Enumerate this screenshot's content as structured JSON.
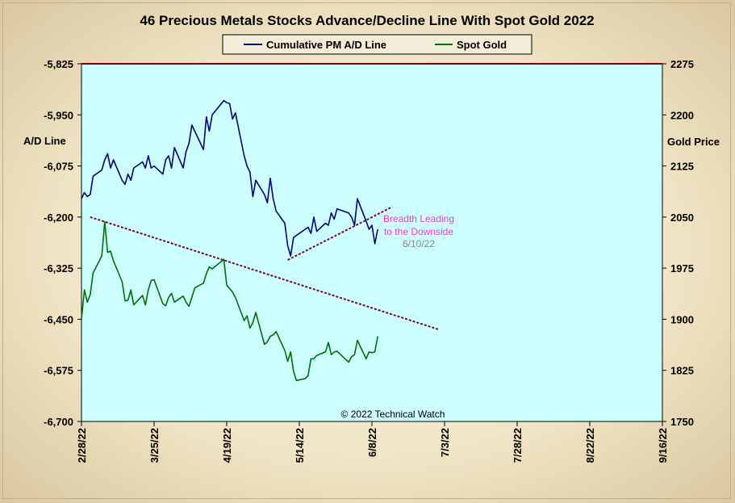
{
  "chart_data": {
    "type": "line",
    "title": "46 Precious Metals Stocks Advance/Decline Line With Spot Gold 2022",
    "legend": {
      "placement": "top-center",
      "entries": [
        {
          "label": "Cumulative PM A/D Line",
          "color": "#000080"
        },
        {
          "label": "Spot Gold",
          "color": "#007000"
        }
      ]
    },
    "y_left": {
      "title": "A/D Line",
      "range": [
        -6700,
        -5825
      ],
      "ticks": [
        -5825,
        -5950,
        -6075,
        -6200,
        -6325,
        -6450,
        -6575,
        -6700
      ],
      "tick_labels": [
        "-5,825",
        "-5,950",
        "-6,075",
        "-6,200",
        "-6,325",
        "-6,450",
        "-6,575",
        "-6,700"
      ]
    },
    "y_right": {
      "title": "Gold Price",
      "range": [
        1750,
        2275
      ],
      "ticks": [
        2275,
        2200,
        2125,
        2050,
        1975,
        1900,
        1825,
        1750
      ],
      "tick_labels": [
        "2275",
        "2200",
        "2125",
        "2050",
        "1975",
        "1900",
        "1825",
        "1750"
      ]
    },
    "x_axis": {
      "type": "date",
      "range": [
        "2022-02-28",
        "2022-09-16"
      ],
      "ticks": [
        "2022-02-28",
        "2022-03-25",
        "2022-04-19",
        "2022-05-14",
        "2022-06-08",
        "2022-07-03",
        "2022-07-28",
        "2022-08-22",
        "2022-09-16"
      ],
      "tick_labels": [
        "2/28/22",
        "3/25/22",
        "4/19/22",
        "5/14/22",
        "6/8/22",
        "7/3/22",
        "7/28/22",
        "8/22/22",
        "9/16/22"
      ]
    },
    "grid": false,
    "background": "#ccffff",
    "series": [
      {
        "name": "Cumulative PM A/D Line",
        "axis": "left",
        "color": "#000080",
        "x": [
          "2022-02-28",
          "2022-03-01",
          "2022-03-02",
          "2022-03-03",
          "2022-03-04",
          "2022-03-07",
          "2022-03-08",
          "2022-03-09",
          "2022-03-10",
          "2022-03-11",
          "2022-03-14",
          "2022-03-15",
          "2022-03-16",
          "2022-03-17",
          "2022-03-18",
          "2022-03-21",
          "2022-03-22",
          "2022-03-23",
          "2022-03-24",
          "2022-03-25",
          "2022-03-28",
          "2022-03-29",
          "2022-03-30",
          "2022-03-31",
          "2022-04-01",
          "2022-04-04",
          "2022-04-05",
          "2022-04-06",
          "2022-04-07",
          "2022-04-08",
          "2022-04-11",
          "2022-04-12",
          "2022-04-13",
          "2022-04-14",
          "2022-04-18",
          "2022-04-19",
          "2022-04-20",
          "2022-04-21",
          "2022-04-22",
          "2022-04-25",
          "2022-04-26",
          "2022-04-27",
          "2022-04-28",
          "2022-04-29",
          "2022-05-02",
          "2022-05-03",
          "2022-05-04",
          "2022-05-05",
          "2022-05-06",
          "2022-05-09",
          "2022-05-10",
          "2022-05-11",
          "2022-05-12",
          "2022-05-13",
          "2022-05-16",
          "2022-05-17",
          "2022-05-18",
          "2022-05-19",
          "2022-05-20",
          "2022-05-23",
          "2022-05-24",
          "2022-05-25",
          "2022-05-26",
          "2022-05-27",
          "2022-05-31",
          "2022-06-01",
          "2022-06-02",
          "2022-06-03",
          "2022-06-06",
          "2022-06-07",
          "2022-06-08",
          "2022-06-09",
          "2022-06-10"
        ],
        "values": [
          -6155,
          -6140,
          -6150,
          -6145,
          -6100,
          -6085,
          -6060,
          -6045,
          -6080,
          -6060,
          -6110,
          -6120,
          -6095,
          -6110,
          -6080,
          -6065,
          -6080,
          -6050,
          -6080,
          -6075,
          -6095,
          -6060,
          -6050,
          -6080,
          -6030,
          -6080,
          -6040,
          -6020,
          -5975,
          -5990,
          -6035,
          -5955,
          -5990,
          -5950,
          -5915,
          -5920,
          -5922,
          -5960,
          -5945,
          -6050,
          -6075,
          -6090,
          -6150,
          -6110,
          -6145,
          -6165,
          -6105,
          -6155,
          -6185,
          -6215,
          -6270,
          -6295,
          -6250,
          -6245,
          -6230,
          -6225,
          -6240,
          -6200,
          -6235,
          -6215,
          -6220,
          -6190,
          -6205,
          -6180,
          -6190,
          -6200,
          -6220,
          -6155,
          -6210,
          -6230,
          -6220,
          -6265,
          -6230
        ]
      },
      {
        "name": "Spot Gold",
        "axis": "right",
        "color": "#007000",
        "x": [
          "2022-02-28",
          "2022-03-01",
          "2022-03-02",
          "2022-03-03",
          "2022-03-04",
          "2022-03-07",
          "2022-03-08",
          "2022-03-09",
          "2022-03-10",
          "2022-03-11",
          "2022-03-14",
          "2022-03-15",
          "2022-03-16",
          "2022-03-17",
          "2022-03-18",
          "2022-03-21",
          "2022-03-22",
          "2022-03-23",
          "2022-03-24",
          "2022-03-25",
          "2022-03-28",
          "2022-03-29",
          "2022-03-30",
          "2022-03-31",
          "2022-04-01",
          "2022-04-04",
          "2022-04-05",
          "2022-04-06",
          "2022-04-07",
          "2022-04-08",
          "2022-04-11",
          "2022-04-12",
          "2022-04-13",
          "2022-04-14",
          "2022-04-18",
          "2022-04-19",
          "2022-04-20",
          "2022-04-21",
          "2022-04-22",
          "2022-04-25",
          "2022-04-26",
          "2022-04-27",
          "2022-04-28",
          "2022-04-29",
          "2022-05-02",
          "2022-05-03",
          "2022-05-04",
          "2022-05-05",
          "2022-05-06",
          "2022-05-09",
          "2022-05-10",
          "2022-05-11",
          "2022-05-12",
          "2022-05-13",
          "2022-05-16",
          "2022-05-17",
          "2022-05-18",
          "2022-05-19",
          "2022-05-20",
          "2022-05-23",
          "2022-05-24",
          "2022-05-25",
          "2022-05-26",
          "2022-05-27",
          "2022-05-31",
          "2022-06-01",
          "2022-06-02",
          "2022-06-03",
          "2022-06-06",
          "2022-06-07",
          "2022-06-08",
          "2022-06-09",
          "2022-06-10"
        ],
        "values": [
          1900,
          1943,
          1925,
          1936,
          1968,
          1993,
          2043,
          1998,
          2000,
          1986,
          1955,
          1927,
          1928,
          1943,
          1921,
          1935,
          1921,
          1943,
          1957,
          1958,
          1923,
          1920,
          1932,
          1938,
          1925,
          1934,
          1925,
          1919,
          1932,
          1946,
          1953,
          1967,
          1977,
          1974,
          1988,
          1950,
          1945,
          1940,
          1932,
          1898,
          1905,
          1887,
          1895,
          1910,
          1863,
          1867,
          1875,
          1877,
          1882,
          1854,
          1838,
          1852,
          1824,
          1810,
          1813,
          1817,
          1842,
          1842,
          1847,
          1852,
          1866,
          1848,
          1852,
          1853,
          1837,
          1845,
          1848,
          1869,
          1842,
          1852,
          1851,
          1852,
          1875
        ]
      }
    ],
    "annotations": [
      {
        "text": "Breadth Leading",
        "color": "#ff33cc"
      },
      {
        "text": "to the Downside",
        "color": "#ff33cc"
      },
      {
        "text": "6/10/22",
        "color": "#888888"
      },
      {
        "text": "© 2022 Technical Watch",
        "color": "#000000"
      }
    ],
    "trendlines": [
      {
        "axis": "left",
        "color": "#800040",
        "style": "dashed",
        "x": [
          "2022-05-10",
          "2022-06-15"
        ],
        "y": [
          -6305,
          -6175
        ]
      },
      {
        "axis": "left",
        "color": "#800040",
        "style": "dashed",
        "x": [
          "2022-03-03",
          "2022-07-01"
        ],
        "y": [
          -6200,
          -6475
        ]
      }
    ]
  }
}
